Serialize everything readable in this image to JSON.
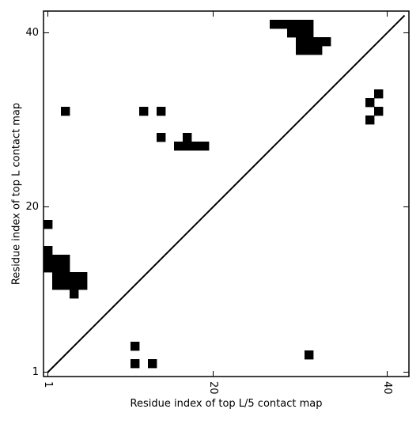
{
  "chart_data": {
    "type": "heatmap",
    "title": "",
    "xlabel": "Residue index of top L/5 contact map",
    "ylabel": "Residue index of top L contact map",
    "xlim": [
      0.5,
      42.5
    ],
    "ylim": [
      0.5,
      42.5
    ],
    "x_ticks": [
      1,
      20,
      40
    ],
    "x_tick_labels": [
      "1",
      "20",
      "40"
    ],
    "y_ticks": [
      1,
      20,
      40
    ],
    "y_tick_labels": [
      "1",
      "20",
      "40"
    ],
    "x_tick_label_rotation": "vertical",
    "grid": false,
    "diagonal": {
      "from": [
        1,
        1
      ],
      "to": [
        42,
        42
      ],
      "color": "#000000"
    },
    "contact_color": "#000000",
    "contacts_top_L_upper": [
      [
        27,
        41
      ],
      [
        28,
        41
      ],
      [
        29,
        41
      ],
      [
        30,
        41
      ],
      [
        31,
        41
      ],
      [
        29,
        40
      ],
      [
        30,
        40
      ],
      [
        31,
        40
      ],
      [
        30,
        39
      ],
      [
        31,
        39
      ],
      [
        32,
        39
      ],
      [
        33,
        39
      ],
      [
        30,
        38
      ],
      [
        31,
        38
      ],
      [
        32,
        38
      ],
      [
        38,
        32
      ],
      [
        39,
        33
      ],
      [
        39,
        31
      ],
      [
        38,
        30
      ],
      [
        3,
        31
      ],
      [
        12,
        31
      ],
      [
        14,
        31
      ],
      [
        14,
        28
      ],
      [
        17,
        28
      ],
      [
        16,
        27
      ],
      [
        17,
        27
      ],
      [
        18,
        27
      ],
      [
        19,
        27
      ],
      [
        1,
        18
      ],
      [
        1,
        15
      ],
      [
        1,
        14
      ],
      [
        2,
        14
      ],
      [
        3,
        14
      ],
      [
        1,
        13
      ],
      [
        2,
        13
      ],
      [
        3,
        13
      ],
      [
        2,
        12
      ],
      [
        3,
        12
      ],
      [
        4,
        12
      ],
      [
        5,
        12
      ],
      [
        2,
        11
      ],
      [
        3,
        11
      ],
      [
        4,
        11
      ],
      [
        5,
        11
      ],
      [
        4,
        10
      ]
    ],
    "contacts_top_L5_lower": [
      [
        11,
        4
      ],
      [
        11,
        2
      ],
      [
        13,
        2
      ],
      [
        31,
        3
      ]
    ]
  }
}
